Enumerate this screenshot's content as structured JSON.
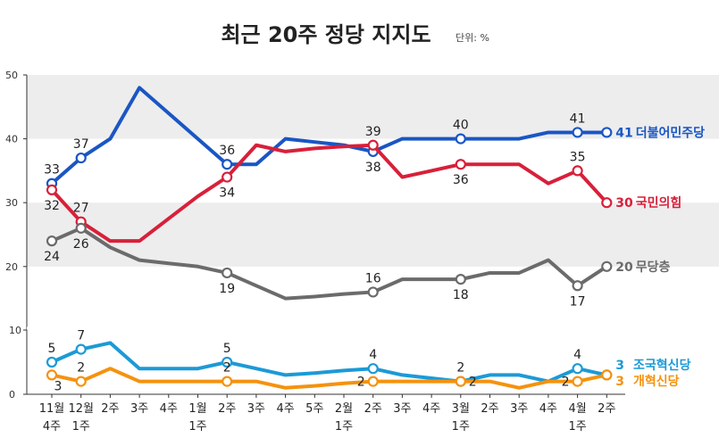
{
  "chart_data": {
    "type": "line",
    "title": "최근 20주 정당 지지도",
    "unit": "단위: %",
    "x": [
      {
        "top": "11월",
        "bottom": "4주"
      },
      {
        "top": "12월",
        "bottom": "1주"
      },
      {
        "top": "2주",
        "bottom": ""
      },
      {
        "top": "3주",
        "bottom": ""
      },
      {
        "top": "4주",
        "bottom": ""
      },
      {
        "top": "1월",
        "bottom": "1주"
      },
      {
        "top": "2주",
        "bottom": ""
      },
      {
        "top": "3주",
        "bottom": ""
      },
      {
        "top": "4주",
        "bottom": ""
      },
      {
        "top": "5주",
        "bottom": ""
      },
      {
        "top": "2월",
        "bottom": "1주"
      },
      {
        "top": "2주",
        "bottom": ""
      },
      {
        "top": "3주",
        "bottom": ""
      },
      {
        "top": "4주",
        "bottom": ""
      },
      {
        "top": "3월",
        "bottom": "1주"
      },
      {
        "top": "2주",
        "bottom": ""
      },
      {
        "top": "3주",
        "bottom": ""
      },
      {
        "top": "4주",
        "bottom": ""
      },
      {
        "top": "4월",
        "bottom": "1주"
      },
      {
        "top": "2주",
        "bottom": ""
      }
    ],
    "upper_panel": {
      "ylim": [
        0,
        50
      ],
      "yticks": [
        "0",
        "10",
        "20",
        "30",
        "40",
        "50"
      ],
      "bands": [
        [
          20,
          30
        ],
        [
          40,
          50
        ]
      ]
    },
    "lower_panel": {
      "ylim": [
        0,
        10
      ],
      "yticks": [
        "0",
        "10"
      ]
    },
    "series": [
      {
        "name": "더불어민주당",
        "panel": "upper",
        "color": "#1a56c4",
        "end_label": "41",
        "values": [
          33,
          37,
          40,
          48,
          44,
          40,
          36,
          36,
          40,
          39.5,
          39,
          38,
          40,
          40,
          40,
          40,
          40,
          41,
          41,
          41
        ],
        "markers": [
          0,
          1,
          6,
          11,
          14,
          18,
          19
        ],
        "labels": [
          {
            "i": 0,
            "text": "33",
            "pos": "above"
          },
          {
            "i": 1,
            "text": "37",
            "pos": "above"
          },
          {
            "i": 6,
            "text": "36",
            "pos": "above"
          },
          {
            "i": 11,
            "text": "38",
            "pos": "below"
          },
          {
            "i": 14,
            "text": "40",
            "pos": "above"
          },
          {
            "i": 18,
            "text": "41",
            "pos": "above"
          }
        ]
      },
      {
        "name": "국민의힘",
        "panel": "upper",
        "color": "#d8203a",
        "end_label": "30",
        "values": [
          32,
          27,
          24,
          24,
          27.5,
          31,
          34,
          39,
          38,
          38.5,
          38.8,
          39,
          34,
          35,
          36,
          36,
          36,
          33,
          35,
          30
        ],
        "markers": [
          0,
          1,
          6,
          11,
          14,
          18,
          19
        ],
        "labels": [
          {
            "i": 0,
            "text": "32",
            "pos": "below"
          },
          {
            "i": 1,
            "text": "27",
            "pos": "above"
          },
          {
            "i": 6,
            "text": "34",
            "pos": "below"
          },
          {
            "i": 11,
            "text": "39",
            "pos": "above"
          },
          {
            "i": 14,
            "text": "36",
            "pos": "below"
          },
          {
            "i": 18,
            "text": "35",
            "pos": "above"
          }
        ]
      },
      {
        "name": "무당층",
        "panel": "upper",
        "color": "#6b6b6b",
        "end_label": "20",
        "values": [
          24,
          26,
          23,
          21,
          20.5,
          20,
          19,
          17,
          15,
          15.3,
          15.7,
          16,
          18,
          18,
          18,
          19,
          19,
          21,
          17,
          20
        ],
        "markers": [
          0,
          1,
          6,
          11,
          14,
          18,
          19
        ],
        "labels": [
          {
            "i": 0,
            "text": "24",
            "pos": "below"
          },
          {
            "i": 1,
            "text": "26",
            "pos": "below"
          },
          {
            "i": 6,
            "text": "19",
            "pos": "below"
          },
          {
            "i": 11,
            "text": "16",
            "pos": "above"
          },
          {
            "i": 14,
            "text": "18",
            "pos": "below"
          },
          {
            "i": 18,
            "text": "17",
            "pos": "below"
          }
        ]
      },
      {
        "name": "조국혁신당",
        "panel": "lower",
        "color": "#1c9ad6",
        "end_label": "3",
        "values": [
          5,
          7,
          8,
          4,
          4,
          4,
          5,
          4,
          3,
          3.3,
          3.7,
          4,
          3,
          2.5,
          2,
          3,
          3,
          2,
          4,
          3
        ],
        "markers": [
          0,
          1,
          6,
          11,
          14,
          18,
          19
        ],
        "labels": [
          {
            "i": 0,
            "text": "5",
            "pos": "above"
          },
          {
            "i": 1,
            "text": "7",
            "pos": "above"
          },
          {
            "i": 6,
            "text": "5",
            "pos": "above"
          },
          {
            "i": 11,
            "text": "4",
            "pos": "above"
          },
          {
            "i": 14,
            "text": "2",
            "pos": "above"
          },
          {
            "i": 18,
            "text": "4",
            "pos": "above"
          }
        ]
      },
      {
        "name": "개혁신당",
        "panel": "lower",
        "color": "#f5920e",
        "end_label": "3",
        "values": [
          3,
          2,
          4,
          2,
          2,
          2,
          2,
          2,
          1,
          1.3,
          1.7,
          2,
          2,
          2,
          2,
          2,
          1,
          2,
          2,
          3
        ],
        "markers": [
          0,
          1,
          6,
          11,
          14,
          18,
          19
        ],
        "labels": [
          {
            "i": 0,
            "text": "3",
            "pos": "below-right"
          },
          {
            "i": 1,
            "text": "2",
            "pos": "above"
          },
          {
            "i": 6,
            "text": "2",
            "pos": "above"
          },
          {
            "i": 11,
            "text": "2",
            "pos": "left"
          },
          {
            "i": 14,
            "text": "2",
            "pos": "right"
          },
          {
            "i": 18,
            "text": "2",
            "pos": "left"
          }
        ]
      }
    ]
  }
}
